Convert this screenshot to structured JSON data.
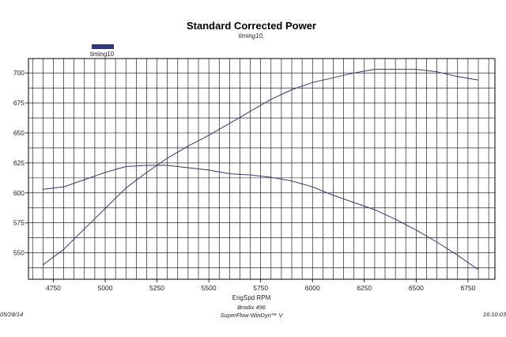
{
  "chart_data": {
    "type": "line",
    "title": "Standard Corrected Power",
    "subtitle": "timing10,",
    "xlabel": "EngSpd RPM",
    "ylabel": "",
    "xlim": [
      4630,
      6880
    ],
    "ylim": [
      528,
      712
    ],
    "x_ticks": [
      4750,
      5000,
      5250,
      5500,
      5750,
      6000,
      6250,
      6500,
      6750
    ],
    "y_ticks": [
      550,
      575,
      600,
      625,
      650,
      675,
      700
    ],
    "grid": true,
    "legend": [
      {
        "name": "timing10",
        "color": "#2b3a80"
      }
    ],
    "legend_position": "top-left",
    "series": [
      {
        "name": "timing10",
        "x": [
          4700,
          4800,
          4900,
          5000,
          5100,
          5200,
          5300,
          5400,
          5500,
          5600,
          5700,
          5800,
          5900,
          6000,
          6100,
          6200,
          6300,
          6400,
          6500,
          6600,
          6700,
          6800
        ],
        "values": [
          540,
          553,
          570,
          587,
          604,
          617,
          629,
          639,
          648,
          658,
          668,
          678,
          686,
          692,
          696,
          700,
          703,
          703,
          703,
          701,
          697,
          694
        ]
      },
      {
        "name": "timing10",
        "x": [
          4700,
          4800,
          4900,
          5000,
          5100,
          5200,
          5300,
          5400,
          5500,
          5600,
          5700,
          5800,
          5900,
          6000,
          6100,
          6200,
          6300,
          6400,
          6500,
          6600,
          6700,
          6800
        ],
        "values": [
          603,
          605,
          611,
          617,
          622,
          623,
          623,
          621,
          619,
          616,
          615,
          613,
          610,
          605,
          598,
          592,
          586,
          578,
          569,
          559,
          548,
          536
        ]
      }
    ],
    "line_color": "#2b3a80"
  },
  "footer": {
    "date": "05/28/14",
    "engine": "Brodix 496",
    "software": "SuperFlow WinDyn™ V",
    "time": "16:10:03"
  }
}
